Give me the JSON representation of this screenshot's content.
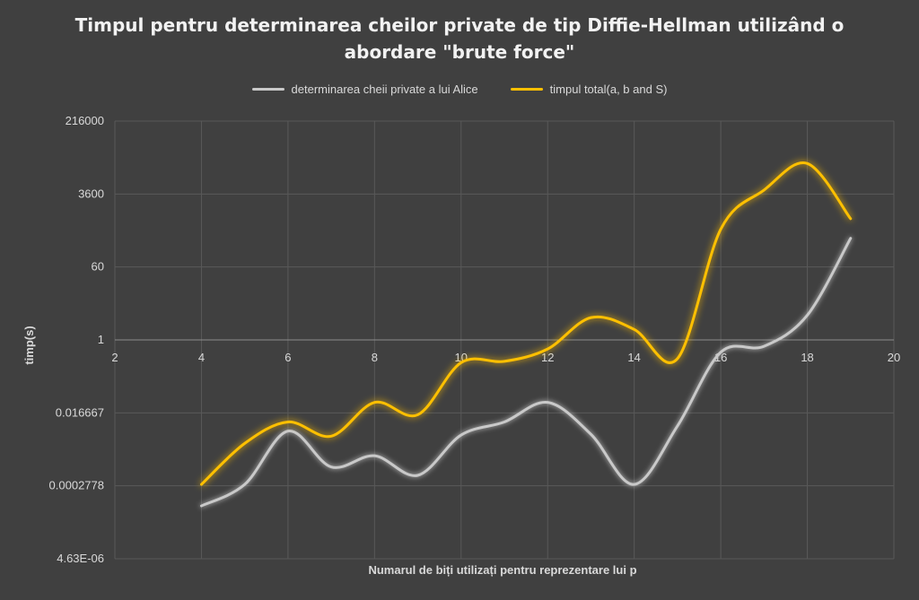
{
  "chart_data": {
    "type": "line",
    "title_line1": "Timpul pentru determinarea cheilor private de tip Diffie-Hellman utilizând o",
    "title_line2": "abordare \"brute force\"",
    "xlabel": "Numarul de biți utilizați pentru reprezentare lui p",
    "ylabel": "timp(s)",
    "x_ticks": [
      2,
      4,
      6,
      8,
      10,
      12,
      14,
      16,
      18,
      20
    ],
    "xlim": [
      2,
      20
    ],
    "y_scale": "log60",
    "y_ticks": [
      {
        "value": 4.63e-06,
        "label": "4.63E-06"
      },
      {
        "value": 0.0002778,
        "label": "0.0002778"
      },
      {
        "value": 0.016667,
        "label": "0.016667"
      },
      {
        "value": 1,
        "label": "1"
      },
      {
        "value": 60,
        "label": "60"
      },
      {
        "value": 3600,
        "label": "3600"
      },
      {
        "value": 216000,
        "label": "216000"
      }
    ],
    "ylim": [
      4.63e-06,
      216000
    ],
    "legend_position": "top",
    "series": [
      {
        "name": "determinarea cheii private a lui Alice",
        "color": "#c9c9c9",
        "x": [
          4,
          5,
          6,
          7,
          8,
          9,
          10,
          11,
          12,
          13,
          14,
          15,
          16,
          17,
          18,
          19
        ],
        "y": [
          9e-05,
          0.0003,
          0.006,
          0.0008,
          0.0015,
          0.0005,
          0.0048,
          0.01,
          0.03,
          0.005,
          0.0003,
          0.008,
          0.5,
          0.7,
          4,
          300
        ]
      },
      {
        "name": "timpul total(a, b and S)",
        "color": "#ffc000",
        "x": [
          4,
          5,
          6,
          7,
          8,
          9,
          10,
          11,
          12,
          13,
          14,
          15,
          16,
          17,
          18,
          19
        ],
        "y": [
          0.0003,
          0.003,
          0.01,
          0.0045,
          0.03,
          0.015,
          0.28,
          0.3,
          0.6,
          3.5,
          1.8,
          0.35,
          500,
          4500,
          20000,
          900
        ]
      }
    ]
  }
}
